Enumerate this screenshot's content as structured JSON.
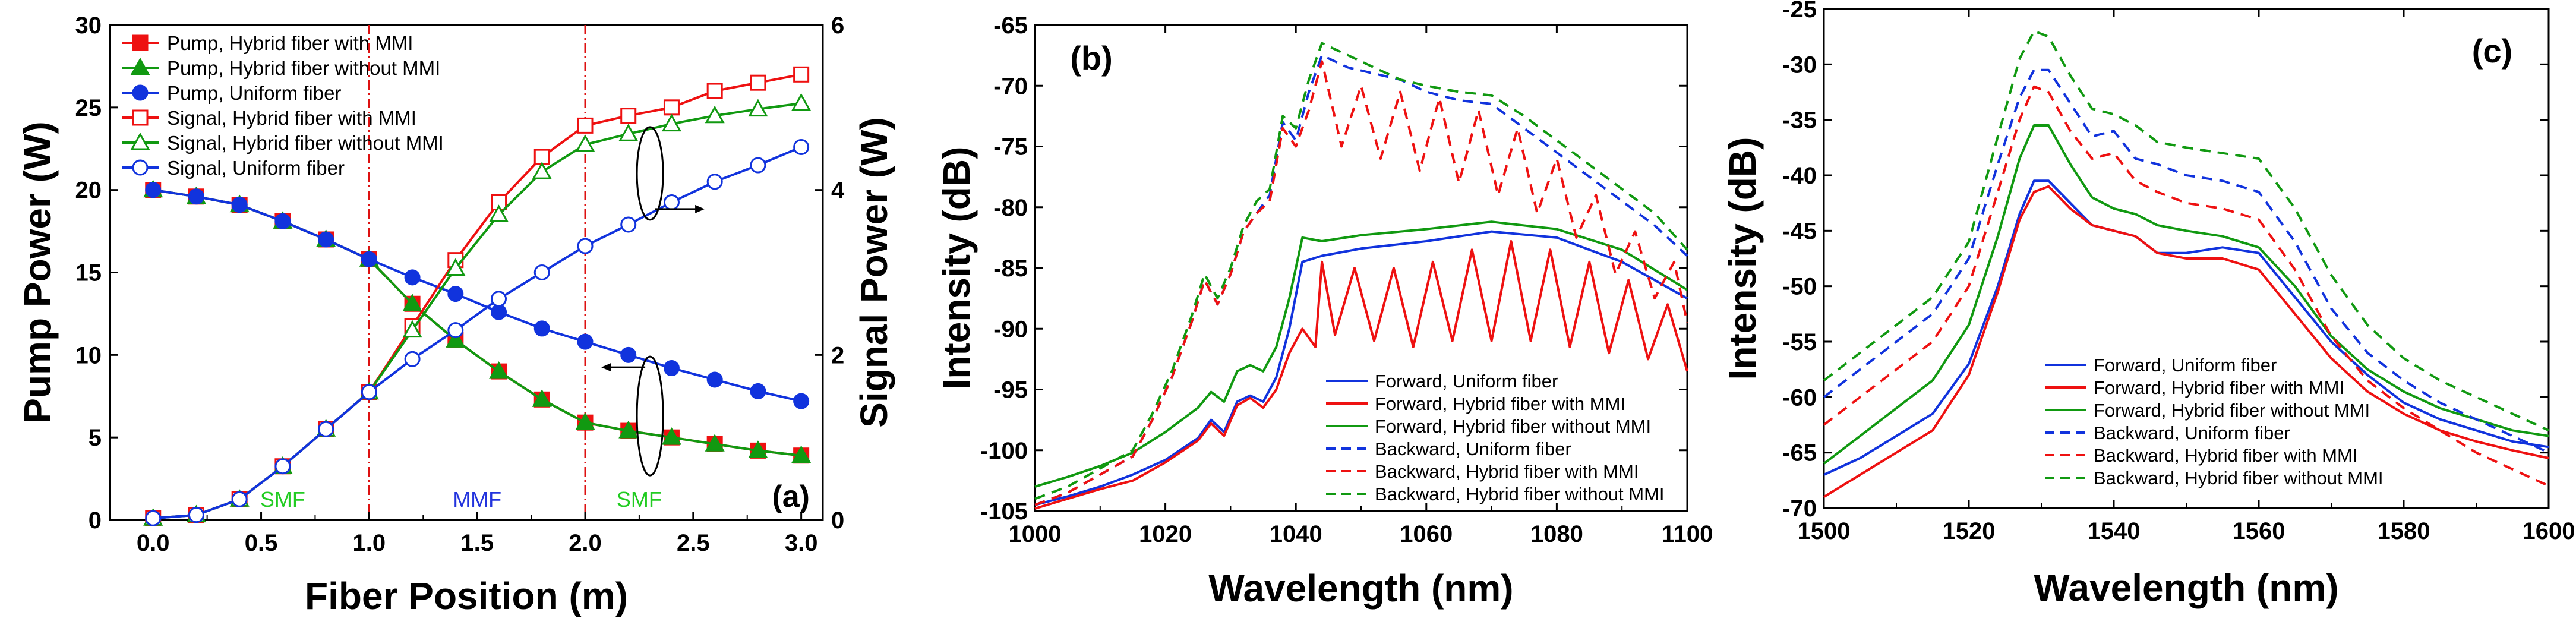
{
  "chart_data": [
    {
      "type": "line",
      "panel_label": "(a)",
      "xlabel": "Fiber Position (m)",
      "ylabel": "Pump Power (W)",
      "y2label": "Signal Power (W)",
      "xlim": [
        -0.2,
        3.1
      ],
      "ylim": [
        0,
        30
      ],
      "y2lim": [
        0,
        6
      ],
      "xticks": [
        "0.0",
        "0.5",
        "1.0",
        "1.5",
        "2.0",
        "2.5",
        "3.0"
      ],
      "yticks": [
        "0",
        "5",
        "10",
        "15",
        "20",
        "25",
        "30"
      ],
      "y2ticks": [
        "0",
        "2",
        "4",
        "6"
      ],
      "x": [
        0.0,
        0.2,
        0.4,
        0.6,
        0.8,
        1.0,
        1.2,
        1.4,
        1.6,
        1.8,
        2.0,
        2.2,
        2.4,
        2.6,
        2.8,
        3.0
      ],
      "region_labels": [
        {
          "text": "SMF",
          "x": 0.6,
          "color": "#22cc22"
        },
        {
          "text": "MMF",
          "x": 1.5,
          "color": "#2233dd"
        },
        {
          "text": "SMF",
          "x": 2.25,
          "color": "#22cc22"
        }
      ],
      "boundaries": [
        1.0,
        2.0
      ],
      "series": [
        {
          "name": "Pump, Hybrid fiber with MMI",
          "axis": "left",
          "color": "#ee1111",
          "marker": "square-filled",
          "values": [
            20.0,
            19.6,
            19.1,
            18.1,
            17.0,
            15.8,
            13.1,
            10.9,
            9.0,
            7.3,
            5.9,
            5.4,
            5.0,
            4.6,
            4.2,
            3.9
          ]
        },
        {
          "name": "Pump, Hybrid fiber without MMI",
          "axis": "left",
          "color": "#119911",
          "marker": "triangle-filled",
          "values": [
            20.0,
            19.6,
            19.1,
            18.1,
            17.0,
            15.8,
            13.1,
            10.9,
            9.0,
            7.3,
            5.9,
            5.4,
            5.0,
            4.6,
            4.2,
            3.9
          ]
        },
        {
          "name": "Pump, Uniform fiber",
          "axis": "left",
          "color": "#1133dd",
          "marker": "circle-filled",
          "values": [
            20.0,
            19.6,
            19.1,
            18.1,
            17.0,
            15.8,
            14.7,
            13.7,
            12.6,
            11.6,
            10.8,
            10.0,
            9.2,
            8.5,
            7.8,
            7.2
          ]
        },
        {
          "name": "Signal, Hybrid fiber with MMI",
          "axis": "right",
          "color": "#ee1111",
          "marker": "square-open",
          "values": [
            0.02,
            0.06,
            0.25,
            0.65,
            1.1,
            1.55,
            2.35,
            3.15,
            3.85,
            4.4,
            4.78,
            4.9,
            5.0,
            5.2,
            5.3,
            5.4
          ]
        },
        {
          "name": "Signal, Hybrid fiber without MMI",
          "axis": "right",
          "color": "#119911",
          "marker": "triangle-open",
          "values": [
            0.02,
            0.06,
            0.25,
            0.65,
            1.1,
            1.55,
            2.3,
            3.05,
            3.7,
            4.22,
            4.55,
            4.68,
            4.8,
            4.9,
            4.98,
            5.05
          ]
        },
        {
          "name": "Signal, Uniform fiber",
          "axis": "right",
          "color": "#1133dd",
          "marker": "circle-open",
          "values": [
            0.02,
            0.06,
            0.25,
            0.65,
            1.1,
            1.55,
            1.95,
            2.3,
            2.68,
            3.0,
            3.32,
            3.58,
            3.85,
            4.1,
            4.3,
            4.52
          ]
        }
      ]
    },
    {
      "type": "line",
      "panel_label": "(b)",
      "xlabel": "Wavelength (nm)",
      "ylabel": "Intensity (dB)",
      "xlim": [
        1000,
        1100
      ],
      "ylim": [
        -105,
        -65
      ],
      "xticks": [
        "1000",
        "1020",
        "1040",
        "1060",
        "1080",
        "1100"
      ],
      "yticks": [
        "-65",
        "-70",
        "-75",
        "-80",
        "-85",
        "-90",
        "-95",
        "-100",
        "-105"
      ],
      "legend": "bottom-right",
      "series": [
        {
          "name": "Forward, Uniform fiber",
          "color": "#1133dd",
          "dash": "solid",
          "x": [
            1000,
            1005,
            1010,
            1015,
            1020,
            1025,
            1027,
            1029,
            1031,
            1033,
            1035,
            1037,
            1039,
            1041,
            1044,
            1050,
            1060,
            1070,
            1080,
            1090,
            1100
          ],
          "y": [
            -104.5,
            -103.8,
            -103.0,
            -102.0,
            -100.8,
            -99.0,
            -97.5,
            -98.5,
            -96.0,
            -95.5,
            -96.0,
            -94.0,
            -90.0,
            -84.5,
            -84.0,
            -83.4,
            -82.8,
            -82.0,
            -82.5,
            -84.5,
            -87.5
          ]
        },
        {
          "name": "Forward, Hybrid fiber with MMI",
          "color": "#ee1111",
          "dash": "solid",
          "x": [
            1000,
            1005,
            1010,
            1015,
            1020,
            1025,
            1027,
            1029,
            1031,
            1033,
            1035,
            1037,
            1039,
            1041,
            1043,
            1044,
            1046,
            1049,
            1052,
            1055,
            1058,
            1061,
            1064,
            1067,
            1070,
            1073,
            1076,
            1079,
            1082,
            1085,
            1088,
            1091,
            1094,
            1097,
            1100
          ],
          "y": [
            -104.8,
            -104.0,
            -103.2,
            -102.5,
            -101.0,
            -99.2,
            -97.8,
            -98.8,
            -96.3,
            -95.7,
            -96.5,
            -95.0,
            -92.0,
            -90.0,
            -91.5,
            -84.5,
            -90.5,
            -85.0,
            -91.0,
            -85.0,
            -91.5,
            -84.5,
            -91.0,
            -83.5,
            -91.0,
            -82.8,
            -91.0,
            -83.5,
            -91.5,
            -84.5,
            -92.0,
            -86.0,
            -92.5,
            -88.0,
            -93.5
          ]
        },
        {
          "name": "Forward, Hybrid fiber without MMI",
          "color": "#119911",
          "dash": "solid",
          "x": [
            1000,
            1005,
            1010,
            1015,
            1020,
            1025,
            1027,
            1029,
            1031,
            1033,
            1035,
            1037,
            1039,
            1041,
            1044,
            1050,
            1060,
            1070,
            1080,
            1090,
            1100
          ],
          "y": [
            -103.0,
            -102.2,
            -101.3,
            -100.2,
            -98.5,
            -96.5,
            -95.2,
            -96.0,
            -93.5,
            -93.0,
            -93.5,
            -91.5,
            -87.5,
            -82.5,
            -82.8,
            -82.3,
            -81.8,
            -81.2,
            -81.8,
            -83.5,
            -86.8
          ]
        },
        {
          "name": "Backward, Uniform fiber",
          "color": "#1133dd",
          "dash": "dashed",
          "x": [
            1000,
            1005,
            1010,
            1015,
            1018,
            1021,
            1024,
            1026,
            1028,
            1030,
            1032,
            1034,
            1036,
            1038,
            1040,
            1042,
            1044,
            1048,
            1052,
            1056,
            1060,
            1065,
            1070,
            1075,
            1080,
            1085,
            1090,
            1095,
            1100
          ],
          "y": [
            -104.5,
            -103.5,
            -102.0,
            -100.5,
            -97.5,
            -94.0,
            -89.5,
            -86.0,
            -88.0,
            -85.5,
            -82.0,
            -80.5,
            -79.0,
            -73.0,
            -74.5,
            -70.5,
            -67.5,
            -68.5,
            -69.0,
            -69.5,
            -70.5,
            -71.2,
            -71.5,
            -73.5,
            -75.5,
            -77.5,
            -79.5,
            -81.5,
            -84.0
          ]
        },
        {
          "name": "Backward, Hybrid fiber with MMI",
          "color": "#ee1111",
          "dash": "dashed",
          "x": [
            1000,
            1005,
            1010,
            1015,
            1018,
            1021,
            1024,
            1026,
            1028,
            1030,
            1032,
            1034,
            1036,
            1038,
            1040,
            1042,
            1044,
            1047,
            1050,
            1053,
            1056,
            1059,
            1062,
            1065,
            1068,
            1071,
            1074,
            1077,
            1080,
            1083,
            1086,
            1089,
            1092,
            1095,
            1098,
            1100
          ],
          "y": [
            -104.5,
            -103.5,
            -102.0,
            -100.5,
            -97.5,
            -94.0,
            -89.5,
            -86.0,
            -88.0,
            -85.5,
            -82.0,
            -80.5,
            -79.5,
            -73.5,
            -75.0,
            -72.0,
            -68.0,
            -75.0,
            -70.0,
            -76.0,
            -70.5,
            -77.0,
            -71.0,
            -78.0,
            -72.0,
            -79.0,
            -73.5,
            -80.5,
            -76.0,
            -82.5,
            -79.0,
            -85.5,
            -82.0,
            -87.5,
            -84.5,
            -89.5
          ]
        },
        {
          "name": "Backward, Hybrid fiber without MMI",
          "color": "#119911",
          "dash": "dashed",
          "x": [
            1000,
            1005,
            1010,
            1015,
            1018,
            1021,
            1024,
            1026,
            1028,
            1030,
            1032,
            1034,
            1036,
            1038,
            1040,
            1042,
            1044,
            1048,
            1052,
            1056,
            1060,
            1065,
            1070,
            1075,
            1080,
            1085,
            1090,
            1095,
            1100
          ],
          "y": [
            -104.0,
            -103.0,
            -101.5,
            -100.0,
            -97.0,
            -93.5,
            -89.0,
            -85.5,
            -87.5,
            -85.0,
            -81.5,
            -79.5,
            -78.5,
            -72.5,
            -73.5,
            -69.5,
            -66.5,
            -67.5,
            -68.5,
            -69.5,
            -70.0,
            -70.5,
            -70.8,
            -72.5,
            -74.5,
            -76.5,
            -78.5,
            -80.5,
            -83.5
          ]
        }
      ]
    },
    {
      "type": "line",
      "panel_label": "(c)",
      "xlabel": "Wavelength (nm)",
      "ylabel": "Intensity (dB)",
      "xlim": [
        1500,
        1600
      ],
      "ylim": [
        -70,
        -25
      ],
      "xticks": [
        "1500",
        "1520",
        "1540",
        "1560",
        "1580",
        "1600"
      ],
      "yticks": [
        "-25",
        "-30",
        "-35",
        "-40",
        "-45",
        "-50",
        "-55",
        "-60",
        "-65",
        "-70"
      ],
      "legend": "bottom-center",
      "series": [
        {
          "name": "Forward, Uniform fiber",
          "color": "#1133dd",
          "dash": "solid",
          "x": [
            1500,
            1505,
            1510,
            1515,
            1520,
            1524,
            1527,
            1529,
            1531,
            1534,
            1537,
            1540,
            1543,
            1546,
            1550,
            1555,
            1560,
            1565,
            1570,
            1575,
            1580,
            1585,
            1590,
            1595,
            1600
          ],
          "y": [
            -67.0,
            -65.5,
            -63.5,
            -61.5,
            -57.0,
            -50.0,
            -43.5,
            -40.5,
            -40.5,
            -42.5,
            -44.5,
            -45.0,
            -45.5,
            -47.0,
            -47.0,
            -46.5,
            -47.0,
            -51.0,
            -55.0,
            -58.0,
            -60.5,
            -62.0,
            -63.0,
            -64.0,
            -64.5
          ]
        },
        {
          "name": "Forward, Hybrid fiber with MMI",
          "color": "#ee1111",
          "dash": "solid",
          "x": [
            1500,
            1505,
            1510,
            1515,
            1520,
            1524,
            1527,
            1529,
            1531,
            1534,
            1537,
            1540,
            1543,
            1546,
            1550,
            1555,
            1560,
            1565,
            1570,
            1575,
            1580,
            1585,
            1590,
            1595,
            1600
          ],
          "y": [
            -69.0,
            -67.0,
            -65.0,
            -63.0,
            -58.0,
            -50.5,
            -44.0,
            -41.5,
            -41.0,
            -43.0,
            -44.5,
            -45.0,
            -45.5,
            -47.0,
            -47.5,
            -47.5,
            -48.5,
            -52.5,
            -56.5,
            -59.5,
            -61.5,
            -63.0,
            -64.0,
            -64.8,
            -65.5
          ]
        },
        {
          "name": "Forward, Hybrid fiber without MMI",
          "color": "#119911",
          "dash": "solid",
          "x": [
            1500,
            1505,
            1510,
            1515,
            1520,
            1524,
            1527,
            1529,
            1531,
            1534,
            1537,
            1540,
            1543,
            1546,
            1550,
            1555,
            1560,
            1565,
            1570,
            1575,
            1580,
            1585,
            1590,
            1595,
            1600
          ],
          "y": [
            -66.0,
            -63.5,
            -61.0,
            -58.5,
            -53.5,
            -45.5,
            -38.5,
            -35.5,
            -35.5,
            -39.0,
            -42.0,
            -43.0,
            -43.5,
            -44.5,
            -45.0,
            -45.5,
            -46.5,
            -50.0,
            -54.5,
            -57.5,
            -59.5,
            -61.0,
            -62.0,
            -63.0,
            -63.5
          ]
        },
        {
          "name": "Backward, Uniform fiber",
          "color": "#1133dd",
          "dash": "dashed",
          "x": [
            1500,
            1505,
            1510,
            1515,
            1520,
            1524,
            1527,
            1529,
            1531,
            1534,
            1537,
            1540,
            1543,
            1546,
            1550,
            1555,
            1560,
            1565,
            1570,
            1575,
            1580,
            1585,
            1590,
            1595,
            1600
          ],
          "y": [
            -60.0,
            -57.5,
            -55.0,
            -52.5,
            -47.5,
            -39.0,
            -33.0,
            -30.5,
            -30.5,
            -33.5,
            -36.5,
            -36.0,
            -38.5,
            -39.0,
            -40.0,
            -40.5,
            -41.5,
            -46.0,
            -52.0,
            -56.0,
            -58.5,
            -60.5,
            -62.0,
            -63.5,
            -65.0
          ]
        },
        {
          "name": "Backward, Hybrid fiber with MMI",
          "color": "#ee1111",
          "dash": "dashed",
          "x": [
            1500,
            1505,
            1510,
            1515,
            1520,
            1524,
            1527,
            1529,
            1531,
            1534,
            1537,
            1540,
            1543,
            1546,
            1550,
            1555,
            1560,
            1565,
            1570,
            1575,
            1580,
            1585,
            1590,
            1595,
            1600
          ],
          "y": [
            -62.5,
            -60.0,
            -57.5,
            -55.0,
            -50.0,
            -41.5,
            -35.0,
            -32.0,
            -32.5,
            -36.0,
            -38.5,
            -38.0,
            -40.5,
            -41.5,
            -42.5,
            -43.0,
            -44.0,
            -48.5,
            -54.5,
            -58.5,
            -61.0,
            -63.0,
            -65.0,
            -66.5,
            -68.0
          ]
        },
        {
          "name": "Backward, Hybrid fiber without MMI",
          "color": "#119911",
          "dash": "dashed",
          "x": [
            1500,
            1505,
            1510,
            1515,
            1520,
            1524,
            1527,
            1529,
            1531,
            1534,
            1537,
            1540,
            1543,
            1546,
            1550,
            1555,
            1560,
            1565,
            1570,
            1575,
            1580,
            1585,
            1590,
            1595,
            1600
          ],
          "y": [
            -58.5,
            -56.0,
            -53.5,
            -51.0,
            -46.0,
            -36.5,
            -29.5,
            -27.0,
            -27.5,
            -31.0,
            -34.0,
            -34.5,
            -35.5,
            -37.0,
            -37.5,
            -38.0,
            -38.5,
            -43.0,
            -49.0,
            -53.5,
            -56.5,
            -58.5,
            -60.0,
            -61.5,
            -63.0
          ]
        }
      ]
    }
  ]
}
